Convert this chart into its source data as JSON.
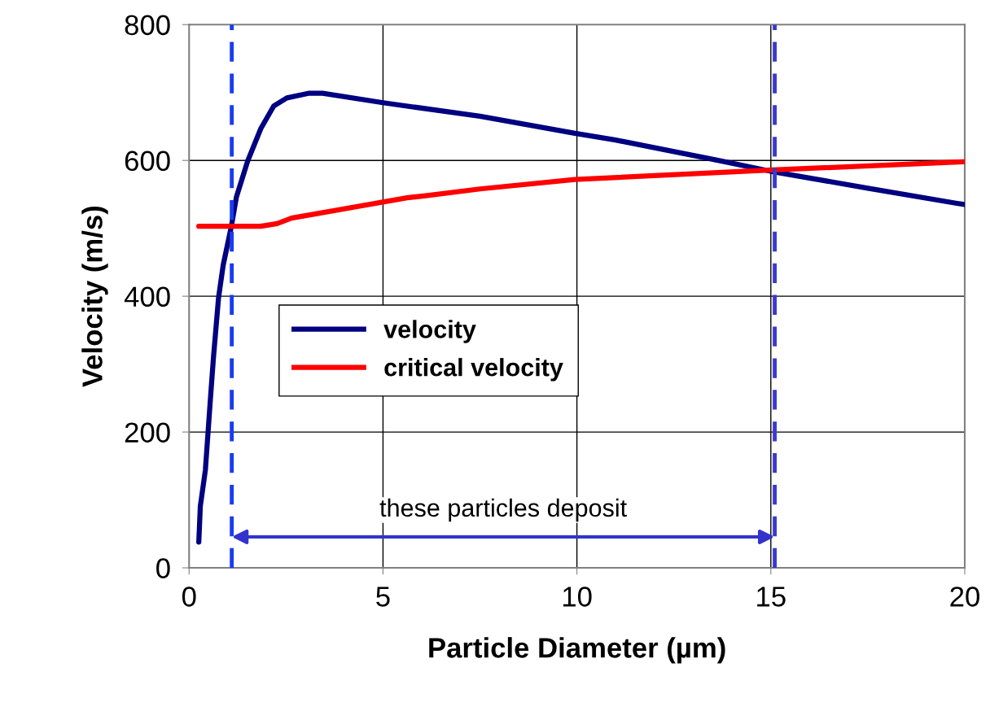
{
  "chart_data": {
    "type": "line",
    "xlabel": "Particle Diameter (µm)",
    "ylabel": "Velocity (m/s)",
    "xlim": [
      0,
      20
    ],
    "xticks": [
      0,
      5,
      10,
      15,
      20
    ],
    "ylim": [
      0,
      800
    ],
    "yticks": [
      0,
      200,
      400,
      600,
      800
    ],
    "grid": true,
    "legend": "center left",
    "marker": "none",
    "line_style": "solid",
    "series": [
      {
        "name": "velocity",
        "color": "#000080",
        "x": [
          0.25,
          0.29,
          0.42,
          0.55,
          0.63,
          0.76,
          0.88,
          1.09,
          1.22,
          1.51,
          1.85,
          2.18,
          2.52,
          3.1,
          3.44,
          5.0,
          7.5,
          9.95,
          11.0,
          13.56,
          15.0,
          17.5,
          19.77,
          20.0
        ],
        "values": [
          38,
          91,
          144,
          249,
          311,
          398,
          446,
          503,
          546,
          599,
          647,
          680,
          692,
          699,
          699,
          685,
          665,
          640,
          630,
          601,
          584,
          559,
          537,
          535
        ]
      },
      {
        "name": "critical velocity",
        "color": "#ff0000",
        "x": [
          0.25,
          1.85,
          2.27,
          2.64,
          5.62,
          6.1,
          7.5,
          9.95,
          15.05,
          19.96,
          20.0
        ],
        "values": [
          503,
          503,
          507,
          515,
          545,
          548,
          558,
          572,
          586,
          598,
          598
        ]
      }
    ],
    "ref_lines": [
      {
        "axis": "x",
        "value": 1.1,
        "color": "#1a3cf0",
        "line_style": "dashed"
      },
      {
        "axis": "x",
        "value": 15.1,
        "color": "#3a3ad0",
        "line_style": "dashed"
      }
    ],
    "annotations": [
      "these particles deposit"
    ]
  }
}
